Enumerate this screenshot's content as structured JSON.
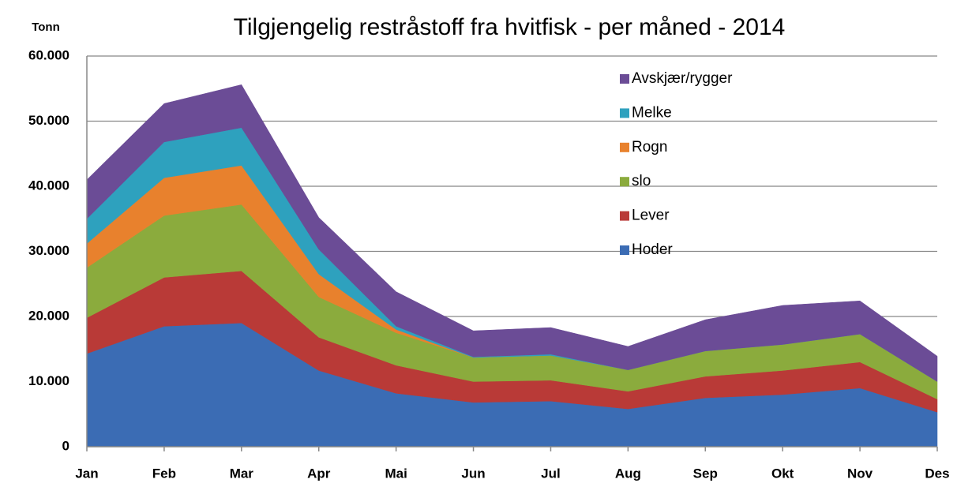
{
  "chart_data": {
    "type": "stacked_area",
    "title": "Tilgjengelig restråstoff fra hvitfisk - per måned - 2014",
    "y_label": "Tonn",
    "categories": [
      "Jan",
      "Feb",
      "Mar",
      "Apr",
      "Mai",
      "Jun",
      "Jul",
      "Aug",
      "Sep",
      "Okt",
      "Nov",
      "Des"
    ],
    "series": [
      {
        "name": "Hoder",
        "color": "#3b6cb4",
        "values": [
          14300,
          18500,
          19000,
          11700,
          8200,
          6800,
          7000,
          5800,
          7500,
          8000,
          9000,
          5300
        ]
      },
      {
        "name": "Lever",
        "color": "#b93a37",
        "values": [
          5500,
          7500,
          8000,
          5100,
          4300,
          3200,
          3200,
          2700,
          3300,
          3700,
          4000,
          2000
        ]
      },
      {
        "name": "slo",
        "color": "#8bab3d",
        "values": [
          7700,
          9500,
          10200,
          6200,
          5000,
          3700,
          3800,
          3300,
          3900,
          4000,
          4300,
          2700
        ]
      },
      {
        "name": "Rogn",
        "color": "#e8812d",
        "values": [
          3700,
          5800,
          6000,
          3500,
          500,
          0,
          0,
          0,
          0,
          0,
          0,
          0
        ]
      },
      {
        "name": "Melke",
        "color": "#2ea1be",
        "values": [
          3800,
          5500,
          5800,
          3800,
          500,
          100,
          200,
          0,
          0,
          0,
          0,
          0
        ]
      },
      {
        "name": "Avskjær/rygger",
        "color": "#6b4c96",
        "values": [
          6000,
          5900,
          6600,
          4900,
          5300,
          4000,
          4100,
          3600,
          4800,
          6000,
          5100,
          3900
        ]
      }
    ],
    "ylim": [
      0,
      60000
    ],
    "yticks": [
      0,
      {
        "value": 10000,
        "label": "10.000"
      },
      {
        "value": 20000,
        "label": "20.000"
      },
      {
        "value": 30000,
        "label": "30.000"
      },
      {
        "value": 40000,
        "label": "40.000"
      },
      {
        "value": 50000,
        "label": "50.000"
      },
      {
        "value": 60000,
        "label": "60.000"
      }
    ],
    "grid": true
  }
}
